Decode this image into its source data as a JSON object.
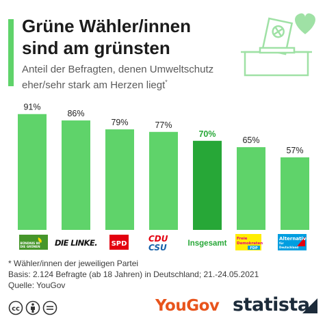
{
  "header": {
    "title_line1": "Grüne Wähler/innen",
    "title_line2": "sind am grünsten",
    "subtitle_line1": "Anteil der Befragten, denen Umweltschutz",
    "subtitle_line2": "eher/sehr stark am Herzen liegt",
    "subtitle_mark": "*"
  },
  "colors": {
    "accent": "#5fd36a",
    "bar": "#5fd36a",
    "highlight": "#27a737",
    "illustration": "#9fe1a5"
  },
  "chart_data": {
    "type": "bar",
    "categories": [
      "BÜNDNIS 90 DIE GRÜNEN",
      "DIE LINKE.",
      "SPD",
      "CDU CSU",
      "Insgesamt",
      "Freie Demokraten FDP",
      "Alternative für Deutschland"
    ],
    "values": [
      91,
      86,
      79,
      77,
      70,
      65,
      57
    ],
    "value_labels": [
      "91%",
      "86%",
      "79%",
      "77%",
      "70%",
      "65%",
      "57%"
    ],
    "highlight_index": 4,
    "ylim": [
      0,
      100
    ],
    "grid": false,
    "title": "Grüne Wähler/innen sind am grünsten",
    "subtitle": "Anteil der Befragten, denen Umweltschutz eher/sehr stark am Herzen liegt*",
    "xlabel": "",
    "ylabel": ""
  },
  "logos": {
    "gruene": {
      "line1": "BÜNDNIS 90",
      "line2": "DIE GRÜNEN",
      "colors": [
        "#46962b",
        "#ffe000",
        "#ffffff"
      ]
    },
    "linke": {
      "text": "DIE LINKE.",
      "color": "#111111"
    },
    "spd": {
      "text": "SPD",
      "color": "#e3000f"
    },
    "cdu": {
      "line1": "CDU",
      "line2": "CSU",
      "colors": [
        "#e3000f",
        "#1560a8"
      ]
    },
    "total": {
      "text": "Insgesamt",
      "color": "#27a737"
    },
    "fdp": {
      "line1": "Freie",
      "line2": "Demokraten",
      "line3": "FDP",
      "colors": [
        "#ffed00",
        "#e5007d",
        "#00a3d9"
      ]
    },
    "afd": {
      "line1": "Alternative",
      "line2": "für",
      "line3": "Deutschland",
      "colors": [
        "#009ee0",
        "#e3000f",
        "#ffffff"
      ]
    }
  },
  "footer": {
    "note": "* Wähler/innen der jeweiligen Partei",
    "basis": "Basis: 2.124 Befragte (ab 18 Jahren) in Deutschland; 21.-24.05.2021",
    "source": "Quelle: YouGov",
    "cc_text": "cc",
    "yougov": "YouGov",
    "statista": "statista"
  }
}
